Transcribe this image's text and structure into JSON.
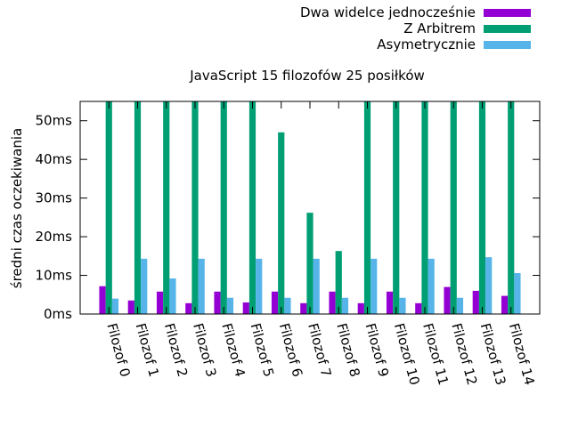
{
  "chart_data": {
    "type": "bar",
    "title": "JavaScript 15 filozofów 25 posiłków",
    "ylabel": "średni czas oczekiwania",
    "xlabel": "",
    "ylim": [
      0,
      55
    ],
    "y_ticks": [
      {
        "value": 0,
        "label": "0ms"
      },
      {
        "value": 10,
        "label": "10ms"
      },
      {
        "value": 20,
        "label": "20ms"
      },
      {
        "value": 30,
        "label": "30ms"
      },
      {
        "value": 40,
        "label": "40ms"
      },
      {
        "value": 50,
        "label": "50ms"
      }
    ],
    "grid": false,
    "legend_position": "top-right",
    "categories": [
      "Filozof 0",
      "Filozof 1",
      "Filozof 2",
      "Filozof 3",
      "Filozof 4",
      "Filozof 5",
      "Filozof 6",
      "Filozof 7",
      "Filozof 8",
      "Filozof 9",
      "Filozof 10",
      "Filozof 11",
      "Filozof 12",
      "Filozof 13",
      "Filozof 14"
    ],
    "series": [
      {
        "name": "Dwa widelce jednocześnie",
        "color": "#9400d3",
        "values": [
          7.2,
          3.5,
          5.8,
          2.8,
          5.8,
          3.0,
          5.8,
          2.8,
          5.8,
          2.8,
          5.8,
          2.8,
          7.0,
          6.0,
          4.7
        ]
      },
      {
        "name": "Z Arbitrem",
        "color": "#009e73",
        "values": [
          55,
          55,
          55,
          55,
          55,
          55,
          47,
          26.2,
          16.3,
          55,
          55,
          55,
          55,
          55,
          55
        ]
      },
      {
        "name": "Asymetrycznie",
        "color": "#56b4e9",
        "values": [
          4.0,
          14.3,
          9.2,
          14.3,
          4.2,
          14.3,
          4.2,
          14.3,
          4.2,
          14.3,
          4.2,
          14.3,
          4.2,
          14.7,
          10.6
        ]
      }
    ]
  }
}
